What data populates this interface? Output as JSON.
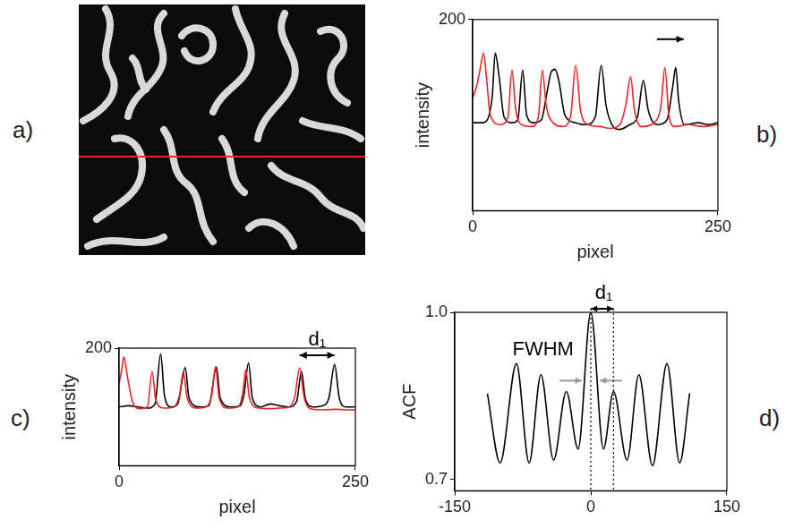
{
  "image_panel": {
    "panel_label": "a)"
  },
  "chart_data": [
    {
      "panel_label": "b)",
      "type": "line",
      "x_label": "pixel",
      "y_label": "intensity",
      "xlim": [
        0,
        250
      ],
      "xticks": [
        0,
        250
      ],
      "ylim": [
        0,
        200
      ],
      "yticks": [
        200
      ],
      "grid": false,
      "series": [
        {
          "color": "#e8262a",
          "x": [
            0,
            4,
            8,
            11,
            14,
            18,
            28,
            36,
            40,
            44,
            50,
            60,
            67,
            71,
            75,
            82,
            92,
            100,
            105,
            110,
            118,
            130,
            140,
            150,
            156,
            161,
            165,
            172,
            185,
            192,
            196,
            200,
            206,
            220,
            235,
            250
          ],
          "values": [
            118,
            130,
            150,
            165,
            140,
            100,
            90,
            98,
            147,
            105,
            90,
            88,
            98,
            147,
            110,
            92,
            88,
            100,
            152,
            105,
            90,
            88,
            86,
            90,
            110,
            140,
            105,
            88,
            92,
            110,
            150,
            100,
            88,
            90,
            88,
            90
          ]
        },
        {
          "color": "#000000",
          "x": [
            0,
            10,
            15,
            20,
            23,
            27,
            32,
            40,
            46,
            51,
            55,
            62,
            70,
            76,
            80,
            84,
            88,
            94,
            105,
            115,
            125,
            131,
            136,
            142,
            150,
            160,
            168,
            174,
            179,
            188,
            198,
            204,
            207,
            210,
            216,
            230,
            240,
            250
          ],
          "values": [
            92,
            92,
            95,
            120,
            165,
            140,
            98,
            92,
            95,
            147,
            100,
            92,
            95,
            125,
            145,
            148,
            135,
            100,
            92,
            90,
            98,
            152,
            110,
            90,
            85,
            90,
            98,
            136,
            105,
            90,
            95,
            130,
            150,
            115,
            90,
            92,
            90,
            92
          ]
        }
      ]
    },
    {
      "panel_label": "c)",
      "type": "line",
      "x_label": "pixel",
      "y_label": "intensity",
      "xlim": [
        0,
        250
      ],
      "xticks": [
        0,
        250
      ],
      "ylim": [
        0,
        200
      ],
      "yticks": [
        200
      ],
      "grid": false,
      "annotations": [
        "d₁"
      ],
      "series": [
        {
          "color": "#e8262a",
          "x": [
            0,
            3,
            5,
            9,
            14,
            22,
            30,
            35,
            39,
            48,
            58,
            64,
            68,
            72,
            82,
            92,
            98,
            102,
            106,
            115,
            126,
            131,
            134,
            138,
            148,
            160,
            170,
            180,
            186,
            191,
            196,
            205,
            215,
            230,
            240,
            250
          ],
          "values": [
            140,
            165,
            185,
            150,
            110,
            97,
            100,
            160,
            110,
            98,
            100,
            120,
            160,
            115,
            98,
            100,
            120,
            168,
            115,
            98,
            100,
            125,
            163,
            115,
            98,
            97,
            98,
            100,
            118,
            166,
            115,
            96,
            95,
            96,
            95,
            95
          ]
        },
        {
          "color": "#000000",
          "x": [
            0,
            10,
            20,
            30,
            38,
            44,
            48,
            55,
            62,
            70,
            74,
            85,
            95,
            103,
            107,
            118,
            128,
            132,
            137,
            141,
            150,
            160,
            170,
            180,
            188,
            193,
            197,
            205,
            215,
            222,
            228,
            233,
            240,
            250
          ],
          "values": [
            100,
            102,
            100,
            98,
            105,
            190,
            120,
            100,
            105,
            167,
            115,
            100,
            102,
            168,
            115,
            100,
            102,
            120,
            175,
            115,
            100,
            105,
            102,
            100,
            110,
            160,
            115,
            100,
            102,
            115,
            172,
            115,
            100,
            100
          ]
        }
      ]
    },
    {
      "panel_label": "d)",
      "type": "line",
      "y_label": "ACF",
      "xlim": [
        -150,
        150
      ],
      "xticks": [
        -150,
        0,
        150
      ],
      "ylim": [
        0.68,
        1.0
      ],
      "yticks": [
        0.7,
        {
          "value": 1,
          "label": "1.0"
        }
      ],
      "grid": false,
      "annotations": [
        "FWHM",
        "d₁"
      ],
      "series": [
        {
          "color": "#000000",
          "x": [
            -114,
            -100,
            -82,
            -68,
            -55,
            -41,
            -27,
            -14,
            0,
            14,
            25,
            40,
            53,
            68,
            84,
            98,
            109
          ],
          "values": [
            0.854,
            0.73,
            0.908,
            0.73,
            0.888,
            0.735,
            0.858,
            0.755,
            1.0,
            0.755,
            0.858,
            0.735,
            0.888,
            0.725,
            0.908,
            0.73,
            0.855
          ]
        }
      ]
    }
  ]
}
